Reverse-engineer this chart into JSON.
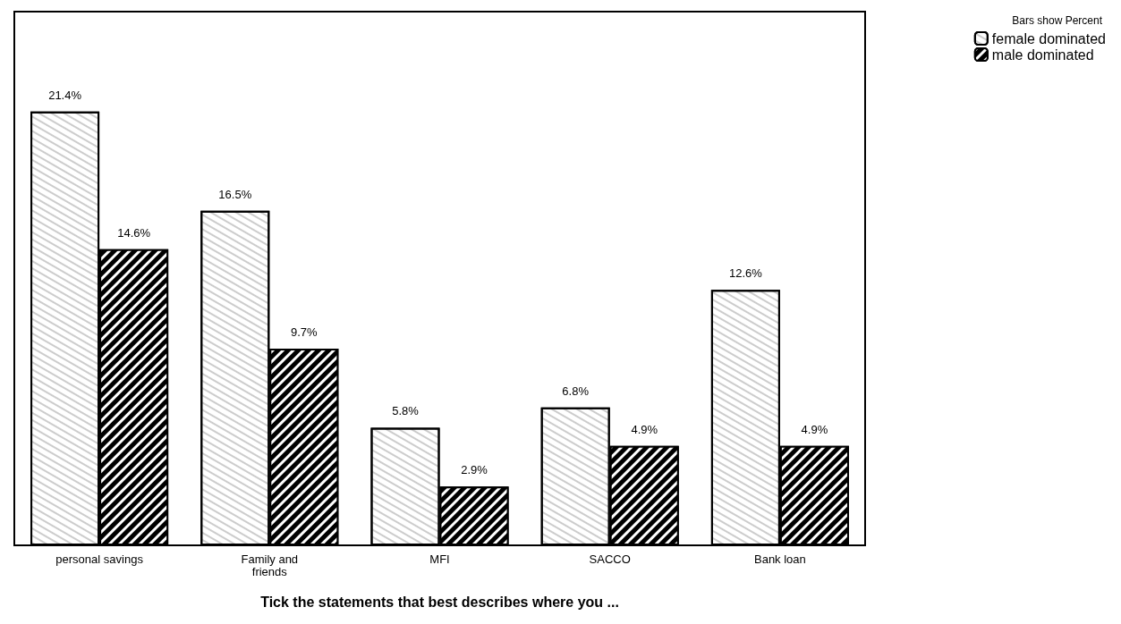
{
  "chart_data": {
    "type": "bar",
    "xlabel": "Tick the statements that best describes where you ...",
    "legend_title": "Bars show Percent",
    "legend": "top right",
    "categories": [
      "personal savings",
      "Family and\nfriends",
      "MFI",
      "SACCO",
      "Bank loan"
    ],
    "series": [
      {
        "name": "female dominated",
        "color": "#ffffff",
        "values": [
          21.4,
          16.5,
          5.8,
          6.8,
          12.6
        ],
        "value_labels": [
          "21.4%",
          "16.5%",
          "5.8%",
          "6.8%",
          "12.6%"
        ]
      },
      {
        "name": "male dominated",
        "color": "#000000",
        "values": [
          14.6,
          9.7,
          2.9,
          4.9,
          4.9
        ],
        "value_labels": [
          "14.6%",
          "9.7%",
          "2.9%",
          "4.9%",
          "4.9%"
        ]
      }
    ],
    "grid": false
  }
}
